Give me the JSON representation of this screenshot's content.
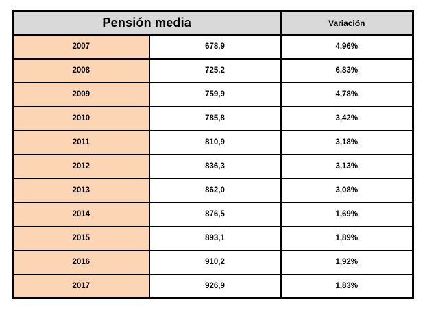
{
  "table": {
    "title": "Pensión media",
    "variation_header": "Variación",
    "rows": [
      {
        "year": "2007",
        "value": "678,9",
        "variation": "4,96%"
      },
      {
        "year": "2008",
        "value": "725,2",
        "variation": "6,83%"
      },
      {
        "year": "2009",
        "value": "759,9",
        "variation": "4,78%"
      },
      {
        "year": "2010",
        "value": "785,8",
        "variation": "3,42%"
      },
      {
        "year": "2011",
        "value": "810,9",
        "variation": "3,18%"
      },
      {
        "year": "2012",
        "value": "836,3",
        "variation": "3,13%"
      },
      {
        "year": "2013",
        "value": "862,0",
        "variation": "3,08%"
      },
      {
        "year": "2014",
        "value": "876,5",
        "variation": "1,69%"
      },
      {
        "year": "2015",
        "value": "893,1",
        "variation": "1,89%"
      },
      {
        "year": "2016",
        "value": "910,2",
        "variation": "1,92%"
      },
      {
        "year": "2017",
        "value": "926,9",
        "variation": "1,83%"
      }
    ],
    "colors": {
      "header_bg": "#d9d9d9",
      "year_bg": "#fcd5b4",
      "border": "#000000",
      "text": "#000000",
      "page_bg": "#ffffff"
    }
  },
  "chart_data": {
    "type": "table",
    "title": "Pensión media",
    "headers": [
      "Pensión media",
      "Variación"
    ],
    "categories": [
      2007,
      2008,
      2009,
      2010,
      2011,
      2012,
      2013,
      2014,
      2015,
      2016,
      2017
    ],
    "series": [
      {
        "name": "Pensión media",
        "values": [
          678.9,
          725.2,
          759.9,
          785.8,
          810.9,
          836.3,
          862.0,
          876.5,
          893.1,
          910.2,
          926.9
        ]
      },
      {
        "name": "Variación (%)",
        "values": [
          4.96,
          6.83,
          4.78,
          3.42,
          3.18,
          3.13,
          3.08,
          1.69,
          1.89,
          1.92,
          1.83
        ]
      }
    ],
    "notes": "Decimal comma formatting in source (e.g. 678,9 and 4,96%)"
  }
}
